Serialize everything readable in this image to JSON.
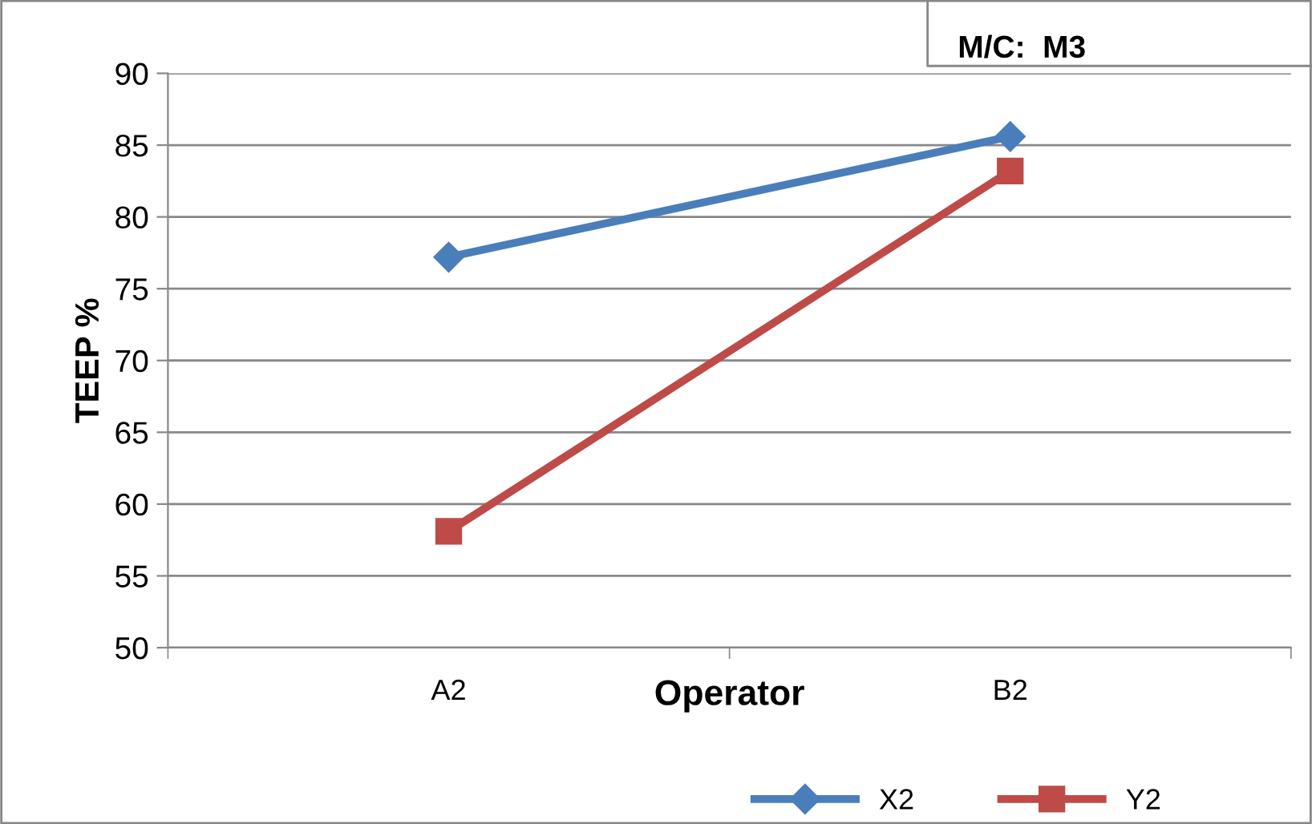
{
  "chart_data": {
    "type": "line",
    "xlabel": "Operator",
    "ylabel": "TEEP %",
    "annotations": [
      "M/C:  M3"
    ],
    "categories": [
      "A2",
      "B2"
    ],
    "series": [
      {
        "name": "X2",
        "color": "#4a7ebb",
        "values": [
          77.2,
          85.6
        ],
        "marker": "diamond"
      },
      {
        "name": "Y2",
        "color": "#be4b48",
        "values": [
          58.1,
          83.2
        ],
        "marker": "square"
      }
    ],
    "ylim": [
      50,
      90
    ],
    "yticks": [
      50,
      55,
      60,
      65,
      70,
      75,
      80,
      85,
      90
    ],
    "grid": "y",
    "legend": "bottom",
    "line_style": "solid"
  }
}
